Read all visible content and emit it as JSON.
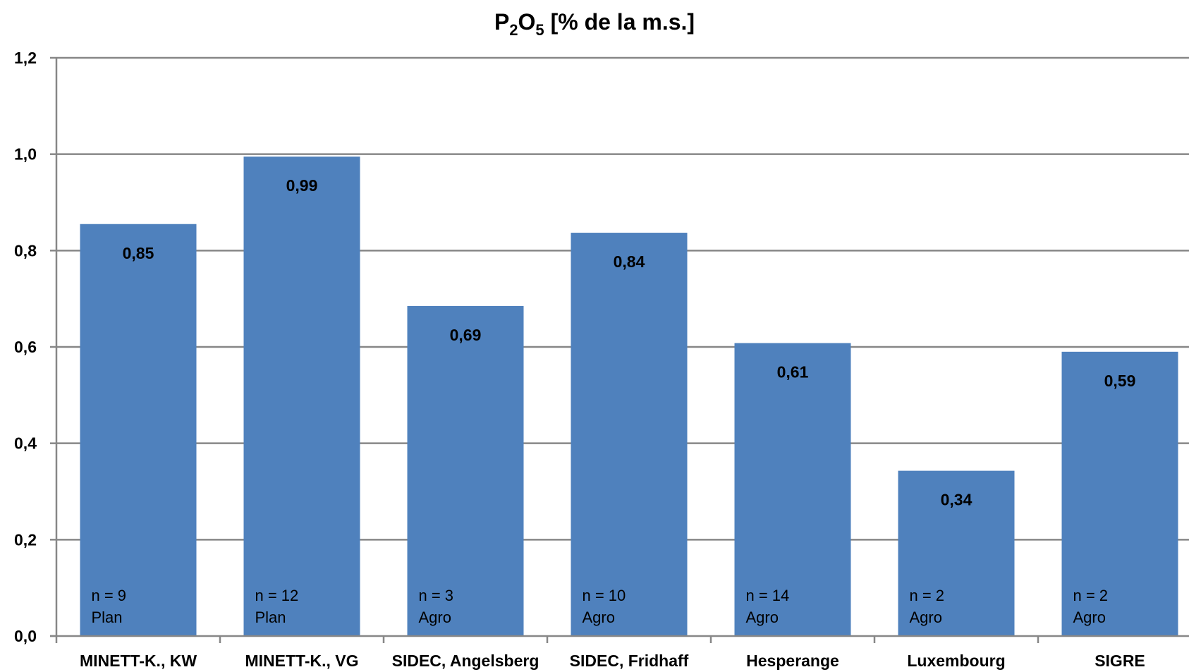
{
  "chart_data": {
    "type": "bar",
    "title": "P2O5 [% de la m.s.]",
    "title_parts": {
      "p": "P",
      "sub1": "2",
      "o": "O",
      "sub2": "5",
      "rest": " [% de la m.s.]"
    },
    "categories": [
      "MINETT-K., KW",
      "MINETT-K., VG",
      "SIDEC, Angelsberg",
      "SIDEC, Fridhaff",
      "Hesperange",
      "Luxembourg",
      "SIGRE"
    ],
    "values": [
      0.855,
      0.995,
      0.685,
      0.837,
      0.608,
      0.343,
      0.59
    ],
    "value_labels": [
      "0,85",
      "0,99",
      "0,69",
      "0,84",
      "0,61",
      "0,34",
      "0,59"
    ],
    "annotations": [
      {
        "n": "n = 9",
        "type": "Plan"
      },
      {
        "n": "n = 12",
        "type": "Plan"
      },
      {
        "n": "n = 3",
        "type": "Agro"
      },
      {
        "n": "n = 10",
        "type": "Agro"
      },
      {
        "n": "n = 14",
        "type": "Agro"
      },
      {
        "n": "n = 2",
        "type": "Agro"
      },
      {
        "n": "n = 2",
        "type": "Agro"
      }
    ],
    "yticks": [
      0.0,
      0.2,
      0.4,
      0.6,
      0.8,
      1.0,
      1.2
    ],
    "ytick_labels": [
      "0,0",
      "0,2",
      "0,4",
      "0,6",
      "0,8",
      "1,0",
      "1,2"
    ],
    "ylim": [
      0,
      1.2
    ],
    "grid": true,
    "bar_color": "#4F81BD",
    "grid_color": "#878787",
    "xlabel": "",
    "ylabel": ""
  }
}
